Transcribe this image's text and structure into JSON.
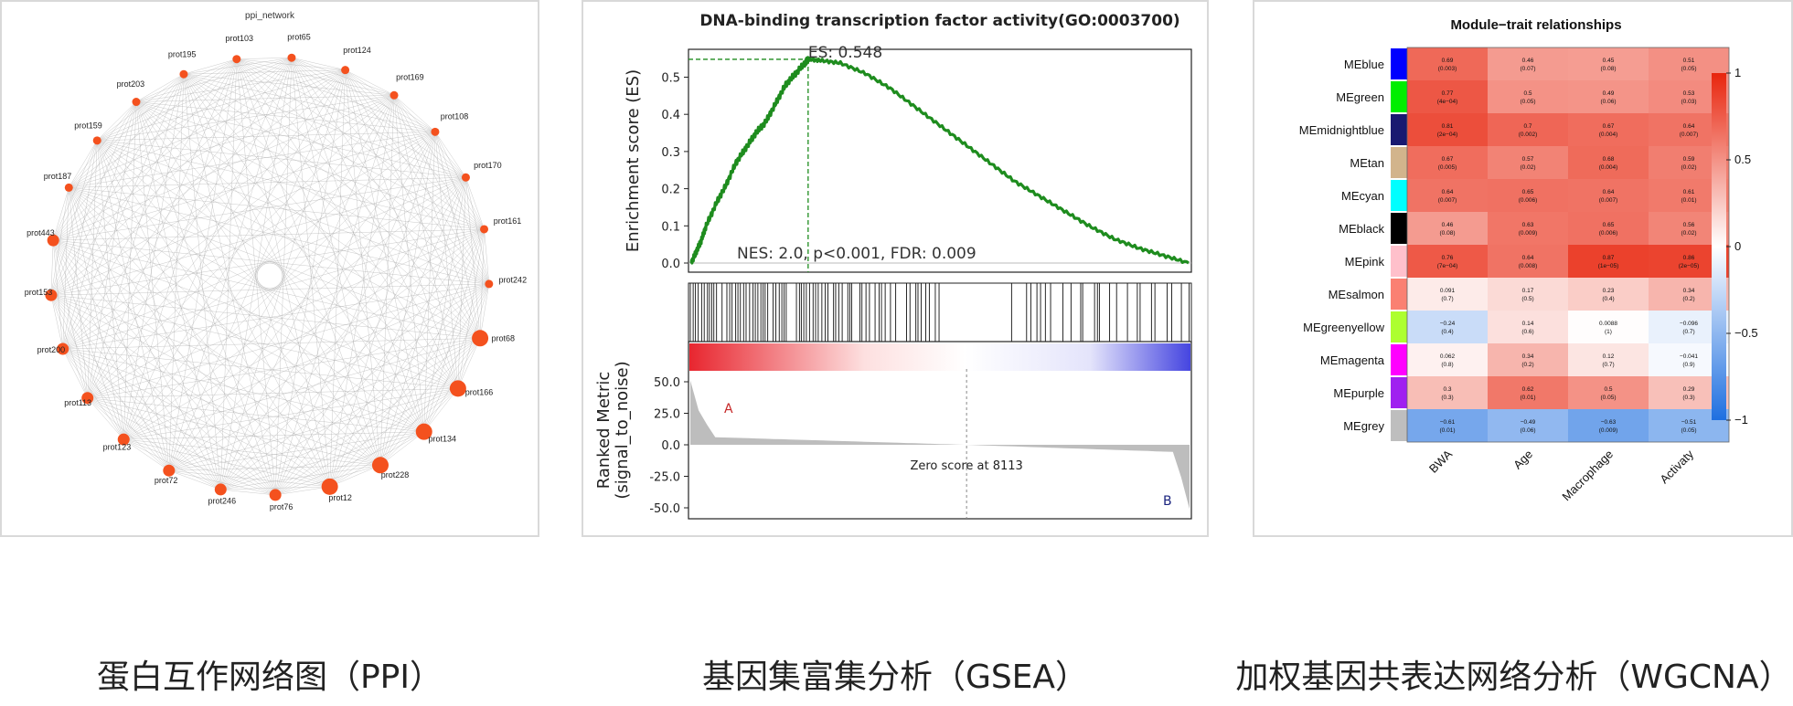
{
  "captions": {
    "ppi": "蛋白互作网络图（PPI）",
    "gsea": "基因集富集分析（GSEA）",
    "wgcna": "加权基因共表达网络分析（WGCNA）"
  },
  "chart_data": [
    {
      "type": "network",
      "title": "ppi_network",
      "node_color": "#f4511e",
      "edge_color": "#9e9e9e",
      "nodes": [
        {
          "label": "prot65",
          "size": 1
        },
        {
          "label": "prot124",
          "size": 1
        },
        {
          "label": "prot169",
          "size": 1
        },
        {
          "label": "prot108",
          "size": 1
        },
        {
          "label": "prot170",
          "size": 1
        },
        {
          "label": "prot161",
          "size": 1
        },
        {
          "label": "prot242",
          "size": 1
        },
        {
          "label": "prot68",
          "size": 3
        },
        {
          "label": "prot166",
          "size": 3
        },
        {
          "label": "prot134",
          "size": 3
        },
        {
          "label": "prot228",
          "size": 3
        },
        {
          "label": "prot12",
          "size": 3
        },
        {
          "label": "prot76",
          "size": 2
        },
        {
          "label": "prot246",
          "size": 2
        },
        {
          "label": "prot72",
          "size": 2
        },
        {
          "label": "prot123",
          "size": 2
        },
        {
          "label": "prot113",
          "size": 2
        },
        {
          "label": "prot200",
          "size": 2
        },
        {
          "label": "prot153",
          "size": 2
        },
        {
          "label": "prot443",
          "size": 2
        },
        {
          "label": "prot187",
          "size": 1
        },
        {
          "label": "prot159",
          "size": 1
        },
        {
          "label": "prot203",
          "size": 1
        },
        {
          "label": "prot195",
          "size": 1
        },
        {
          "label": "prot103",
          "size": 1
        }
      ]
    },
    {
      "type": "line",
      "title": "DNA-binding transcription factor activity(GO:0003700)",
      "ylabel": "Enrichment score (ES)",
      "ylim": [
        0,
        0.57
      ],
      "yticks": [
        "0.0",
        "0.1",
        "0.2",
        "0.3",
        "0.4",
        "0.5"
      ],
      "es_label": "ES: 0.548",
      "es_peak": {
        "rank_fraction": 0.235,
        "es": 0.548
      },
      "stats_label": "NES: 2.0, p<0.001, FDR: 0.009",
      "line_color": "#1e8c1e",
      "es_curve": [
        [
          0,
          0.0
        ],
        [
          0.01,
          0.03
        ],
        [
          0.02,
          0.06
        ],
        [
          0.03,
          0.1
        ],
        [
          0.05,
          0.16
        ],
        [
          0.07,
          0.21
        ],
        [
          0.09,
          0.27
        ],
        [
          0.11,
          0.31
        ],
        [
          0.13,
          0.35
        ],
        [
          0.15,
          0.38
        ],
        [
          0.17,
          0.43
        ],
        [
          0.19,
          0.48
        ],
        [
          0.21,
          0.51
        ],
        [
          0.23,
          0.54
        ],
        [
          0.235,
          0.548
        ],
        [
          0.26,
          0.545
        ],
        [
          0.3,
          0.538
        ],
        [
          0.35,
          0.51
        ],
        [
          0.4,
          0.47
        ],
        [
          0.45,
          0.42
        ],
        [
          0.5,
          0.37
        ],
        [
          0.55,
          0.32
        ],
        [
          0.6,
          0.27
        ],
        [
          0.65,
          0.22
        ],
        [
          0.7,
          0.18
        ],
        [
          0.75,
          0.14
        ],
        [
          0.8,
          0.1
        ],
        [
          0.85,
          0.065
        ],
        [
          0.9,
          0.04
        ],
        [
          0.95,
          0.02
        ],
        [
          1.0,
          0.0
        ]
      ],
      "ranked_metric": {
        "ylabel": "Ranked Metric\n(signal_to_noise)",
        "yticks": [
          "50.0",
          "25.0",
          "0.0",
          "-25.0",
          "-50.0"
        ],
        "ylim": [
          -58,
          62
        ],
        "zero_label": "Zero score at 8113",
        "label_a": "A",
        "label_b": "B"
      }
    },
    {
      "type": "heatmap",
      "title": "Module−trait relationships",
      "columns": [
        "BWA",
        "Age",
        "Macrophage",
        "Activaty"
      ],
      "colorbar_ticks": [
        "1",
        "0.5",
        "0",
        "−0.5",
        "−1"
      ],
      "rows": [
        {
          "module": "MEblue",
          "color": "#0000ff",
          "values": [
            0.69,
            0.46,
            0.45,
            0.51
          ],
          "labels": [
            "0.69\n(0.003)",
            "0.46\n(0.07)",
            "0.45\n(0.08)",
            "0.51\n(0.05)"
          ]
        },
        {
          "module": "MEgreen",
          "color": "#00ee00",
          "values": [
            0.77,
            0.5,
            0.49,
            0.53
          ],
          "labels": [
            "0.77\n(4e−04)",
            "0.5\n(0.05)",
            "0.49\n(0.06)",
            "0.53\n(0.03)"
          ]
        },
        {
          "module": "MEmidnightblue",
          "color": "#191970",
          "values": [
            0.81,
            0.7,
            0.67,
            0.64
          ],
          "labels": [
            "0.81\n(2e−04)",
            "0.7\n(0.002)",
            "0.67\n(0.004)",
            "0.64\n(0.007)"
          ]
        },
        {
          "module": "MEtan",
          "color": "#d2b48c",
          "values": [
            0.67,
            0.57,
            0.68,
            0.59
          ],
          "labels": [
            "0.67\n(0.005)",
            "0.57\n(0.02)",
            "0.68\n(0.004)",
            "0.59\n(0.02)"
          ]
        },
        {
          "module": "MEcyan",
          "color": "#00ffff",
          "values": [
            0.64,
            0.65,
            0.64,
            0.61
          ],
          "labels": [
            "0.64\n(0.007)",
            "0.65\n(0.006)",
            "0.64\n(0.007)",
            "0.61\n(0.01)"
          ]
        },
        {
          "module": "MEblack",
          "color": "#000000",
          "values": [
            0.46,
            0.63,
            0.65,
            0.56
          ],
          "labels": [
            "0.46\n(0.08)",
            "0.63\n(0.009)",
            "0.65\n(0.006)",
            "0.56\n(0.02)"
          ]
        },
        {
          "module": "MEpink",
          "color": "#ffc0cb",
          "values": [
            0.76,
            0.64,
            0.87,
            0.86
          ],
          "labels": [
            "0.76\n(7e−04)",
            "0.64\n(0.008)",
            "0.87\n(1e−05)",
            "0.86\n(2e−05)"
          ]
        },
        {
          "module": "MEsalmon",
          "color": "#fa8072",
          "values": [
            0.091,
            0.17,
            0.23,
            0.34
          ],
          "labels": [
            "0.091\n(0.7)",
            "0.17\n(0.5)",
            "0.23\n(0.4)",
            "0.34\n(0.2)"
          ]
        },
        {
          "module": "MEgreenyellow",
          "color": "#adff2f",
          "values": [
            -0.24,
            0.14,
            0.0088,
            -0.096
          ],
          "labels": [
            "−0.24\n(0.4)",
            "0.14\n(0.6)",
            "0.0088\n(1)",
            "−0.096\n(0.7)"
          ]
        },
        {
          "module": "MEmagenta",
          "color": "#ff00ff",
          "values": [
            0.062,
            0.34,
            0.12,
            -0.041
          ],
          "labels": [
            "0.062\n(0.8)",
            "0.34\n(0.2)",
            "0.12\n(0.7)",
            "−0.041\n(0.9)"
          ]
        },
        {
          "module": "MEpurple",
          "color": "#a020f0",
          "values": [
            0.3,
            0.62,
            0.5,
            0.29
          ],
          "labels": [
            "0.3\n(0.3)",
            "0.62\n(0.01)",
            "0.5\n(0.05)",
            "0.29\n(0.3)"
          ]
        },
        {
          "module": "MEgrey",
          "color": "#bebebe",
          "values": [
            -0.61,
            -0.49,
            -0.63,
            -0.51
          ],
          "labels": [
            "−0.61\n(0.01)",
            "−0.49\n(0.06)",
            "−0.63\n(0.009)",
            "−0.51\n(0.05)"
          ]
        }
      ]
    }
  ]
}
